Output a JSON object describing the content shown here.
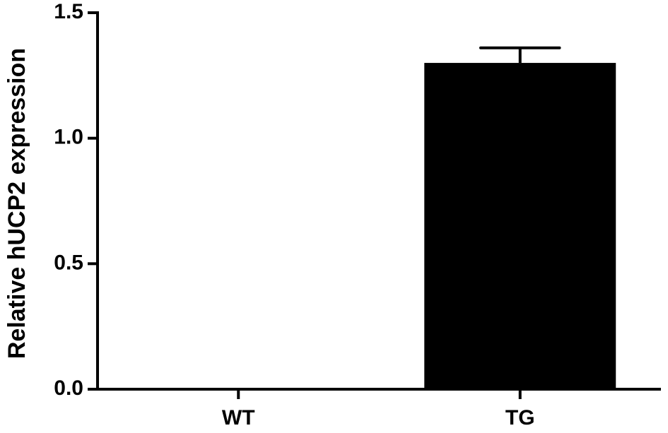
{
  "chart_data": {
    "type": "bar",
    "y_label": "Relative hUCP2 expression",
    "categories": [
      "WT",
      "TG"
    ],
    "values": [
      0,
      1.3
    ],
    "errors": [
      null,
      0.06
    ],
    "color": "#000000",
    "ylim": [
      0,
      1.5
    ],
    "yticks": [
      {
        "value": 0,
        "label": "0.0"
      },
      {
        "value": 0.5,
        "label": "0.5"
      },
      {
        "value": 1,
        "label": "1.0"
      },
      {
        "value": 1.5,
        "label": "1.5"
      }
    ]
  }
}
